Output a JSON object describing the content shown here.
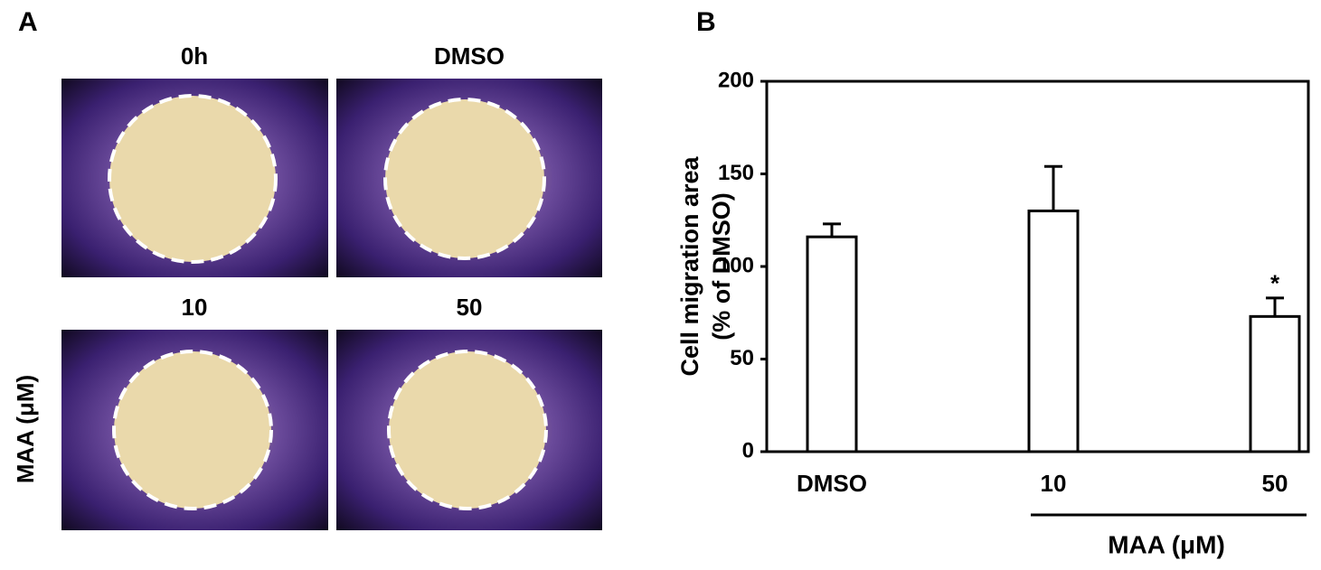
{
  "panel_a": {
    "label": "A",
    "image_titles": [
      "0h",
      "DMSO",
      "10",
      "50"
    ],
    "row_label": "MAA (μM)"
  },
  "chart_data": {
    "type": "bar",
    "panel_label": "B",
    "ylabel": [
      "Cell migration area",
      "(% of DMSO)"
    ],
    "categories": [
      "DMSO",
      "10",
      "50"
    ],
    "values": [
      116,
      130,
      73
    ],
    "errors": [
      7,
      24,
      10
    ],
    "significance": [
      null,
      null,
      "*"
    ],
    "group_label": "MAA (μM)",
    "color": "#ffffff",
    "ylim": [
      0,
      200
    ],
    "yticks": [
      0,
      50,
      100,
      150,
      200
    ],
    "grid": false
  }
}
